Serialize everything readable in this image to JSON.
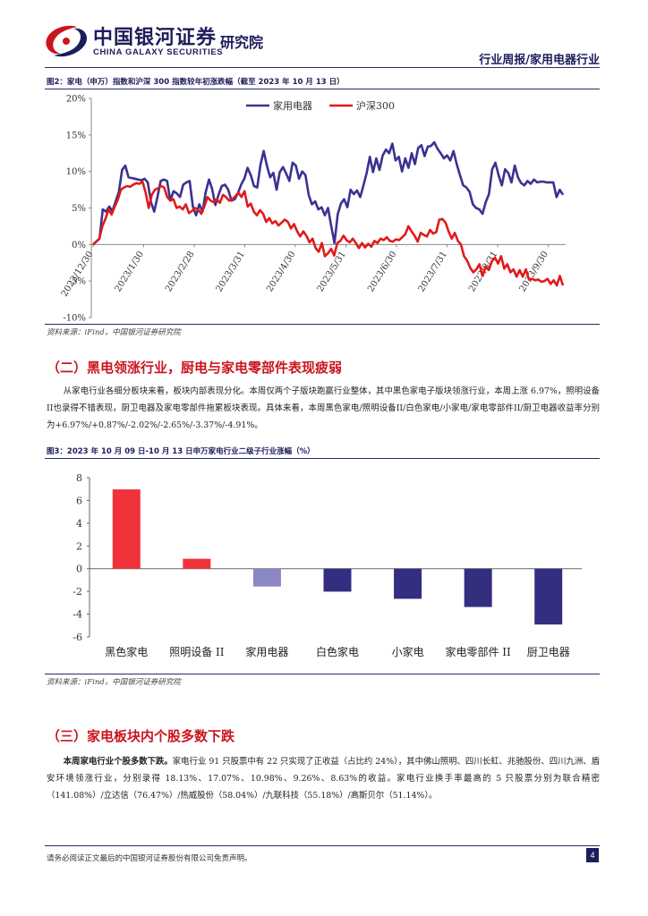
{
  "header": {
    "logo_cn": "中国银河证券",
    "logo_inst": "研究院",
    "logo_en": "CHINA GALAXY SECURITIES",
    "right_title": "行业周报/家用电器行业"
  },
  "fig2": {
    "title": "图2：家电（申万）指数和沪深 300 指数较年初涨跌幅（截至 2023 年 10 月 13 日）",
    "source": "资料来源：iFind，中国银河证券研究院",
    "chart_data": {
      "type": "line",
      "ylim": [
        -10,
        20
      ],
      "yticks": [
        "20%",
        "15%",
        "10%",
        "5%",
        "0%",
        "-5%",
        "-10%"
      ],
      "x_ticks": [
        "2022/12/30",
        "2023/1/30",
        "2023/2/28",
        "2023/3/31",
        "2023/4/30",
        "2023/5/31",
        "2023/6/30",
        "2023/7/31",
        "2023/8/31",
        "2023/9/30"
      ],
      "legend_position": "top",
      "series": [
        {
          "name": "家用电器",
          "color": "#3a3291",
          "values": [
            0,
            0.4,
            0.8,
            4.8,
            4.5,
            5.2,
            4.6,
            5.9,
            7.2,
            10.2,
            10.8,
            9.2,
            9.1,
            9.0,
            8.9,
            8.8,
            9.0,
            8.5,
            5.8,
            4.5,
            6.5,
            8.7,
            8.9,
            8.7,
            6.0,
            7.3,
            7.0,
            6.5,
            8.2,
            8.5,
            8.7,
            5.2,
            4.0,
            5.5,
            4.5,
            7.2,
            8.9,
            7.6,
            5.4,
            6.8,
            8.0,
            8.2,
            7.5,
            6.0,
            6.2,
            7.0,
            8.2,
            9.0,
            10.5,
            9.5,
            8.0,
            7.8,
            10.9,
            12.8,
            10.8,
            9.2,
            9.8,
            7.5,
            9.9,
            10.6,
            9.7,
            8.7,
            11.2,
            10.8,
            9.0,
            10.0,
            9.5,
            6.8,
            5.5,
            5.9,
            4.8,
            5.1,
            4.0,
            5.0,
            2.5,
            0.2,
            4.1,
            5.6,
            6.2,
            5.1,
            7.5,
            6.9,
            7.4,
            6.5,
            8.1,
            9.8,
            12.0,
            9.9,
            11.8,
            10.2,
            12.2,
            13.0,
            12.5,
            13.8,
            11.5,
            12.0,
            10.0,
            11.8,
            10.5,
            12.5,
            11.0,
            13.2,
            13.6,
            12.1,
            13.4,
            13.5,
            14.0,
            13.1,
            12.5,
            11.8,
            12.2,
            11.5,
            12.8,
            11.0,
            9.5,
            8.1,
            7.8,
            7.2,
            5.5,
            5.0,
            4.8,
            4.2,
            5.8,
            6.9,
            10.3,
            11.2,
            9.5,
            8.1,
            10.3,
            9.8,
            8.5,
            10.8,
            9.2,
            8.4,
            8.1,
            8.7,
            8.3,
            8.9,
            8.5,
            8.6,
            8.6,
            8.5,
            8.5,
            8.5,
            6.5,
            7.5,
            6.8
          ]
        },
        {
          "name": "沪深300",
          "color": "#e21a1a",
          "values": [
            0,
            0.4,
            0.8,
            2.5,
            3.5,
            4.8,
            4.1,
            5.2,
            6.1,
            7.5,
            7.8,
            8.0,
            7.9,
            8.2,
            8.4,
            8.3,
            8.6,
            7.1,
            5.0,
            6.8,
            7.5,
            7.7,
            8.0,
            7.8,
            6.5,
            6.0,
            6.2,
            5.0,
            5.2,
            4.8,
            5.5,
            4.3,
            4.6,
            5.0,
            4.8,
            4.2,
            5.2,
            6.5,
            6.0,
            5.8,
            6.2,
            5.7,
            6.8,
            6.5,
            6.0,
            6.2,
            6.6,
            7.1,
            6.5,
            7.3,
            5.2,
            5.6,
            4.5,
            4.0,
            4.7,
            4.2,
            3.1,
            3.6,
            2.9,
            3.2,
            2.6,
            3.0,
            3.4,
            3.1,
            2.2,
            2.8,
            1.8,
            1.1,
            1.8,
            1.2,
            0.3,
            0.8,
            -0.5,
            -1.0,
            0.2,
            -1.6,
            -1.2,
            -0.6,
            -1.5,
            0.2,
            0.5,
            1.2,
            0.6,
            0.3,
            0.8,
            0.2,
            -0.5,
            0.2,
            -0.4,
            0.1,
            -0.3,
            0.5,
            0.2,
            0.8,
            0.6,
            1.0,
            0.5,
            0.4,
            0.7,
            0.6,
            1.0,
            1.4,
            2.5,
            1.8,
            1.2,
            0.4,
            1.6,
            1.3,
            1.1,
            2.0,
            1.5,
            1.7,
            3.4,
            3.5,
            3.0,
            1.8,
            0.8,
            1.6,
            0.5,
            0.0,
            -1.6,
            -2.2,
            -3.2,
            -3.8,
            -3.4,
            -2.7,
            -4.3,
            -3.0,
            -3.5,
            -2.3,
            -1.8,
            -2.6,
            -1.6,
            -3.3,
            -2.7,
            -3.8,
            -3.4,
            -4.4,
            -3.5,
            -4.4,
            -3.4,
            -4.8,
            -4.7,
            -4.9,
            -4.8,
            -5.1,
            -5.0,
            -4.7,
            -5.4,
            -4.9,
            -5.6,
            -4.3,
            -5.6
          ]
        }
      ]
    }
  },
  "section2": {
    "title": "（二）黑电领涨行业，厨电与家电零部件表现疲弱",
    "paragraph": "从家电行业各细分板块来看，板块内部表现分化。本周仅两个子版块跑赢行业整体，其中黑色家电子版块领涨行业，本周上涨 6.97%，照明设备II也录得不错表现，厨卫电器及家电零部件拖累板块表现。具体来看，本周黑色家电/照明设备II/白色家电/小家电/家电零部件II/厨卫电器收益率分别为+6.97%/+0.87%/-2.02%/-2.65%/-3.37%/-4.91%。"
  },
  "fig3": {
    "title": "图3：2023 年 10 月 09 日-10 月 13 日申万家电行业二级子行业涨幅（%）",
    "source": "资料来源：iFind，中国银河证券研究院",
    "chart_data": {
      "type": "bar",
      "categories": [
        "黑色家电",
        "照明设备 II",
        "家用电器",
        "白色家电",
        "小家电",
        "家电零部件 II",
        "厨卫电器"
      ],
      "values": [
        6.97,
        0.87,
        -1.57,
        -2.02,
        -2.65,
        -3.37,
        -4.91
      ],
      "colors": [
        "#f0333a",
        "#f0333a",
        "#8b86c4",
        "#342e80",
        "#342e80",
        "#342e80",
        "#342e80"
      ],
      "ylim": [
        -6,
        8
      ],
      "yticks": [
        "8",
        "6",
        "4",
        "2",
        "0",
        "-2",
        "-4",
        "-6"
      ]
    }
  },
  "section3": {
    "title": "（三）家电板块内个股多数下跌",
    "lead": "本周家电行业个股多数下跌。",
    "paragraph": "家电行业 91 只股票中有 22 只实现了正收益（占比约 24%），其中佛山照明、四川长虹、兆驰股份、四川九洲、盾安环境领涨行业，分别录得 18.13%、17.07%、10.98%、9.26%、8.63%的收益。家电行业换手率最高的 5 只股票分别为联合精密（141.08%）/立达信（76.47%）/热威股份（58.04%）/九联科技（55.18%）/高斯贝尔（51.14%）。"
  },
  "footer": {
    "disclaimer": "请务必阅读正文最后的中国银河证券股份有限公司免责声明。",
    "page": "4"
  }
}
